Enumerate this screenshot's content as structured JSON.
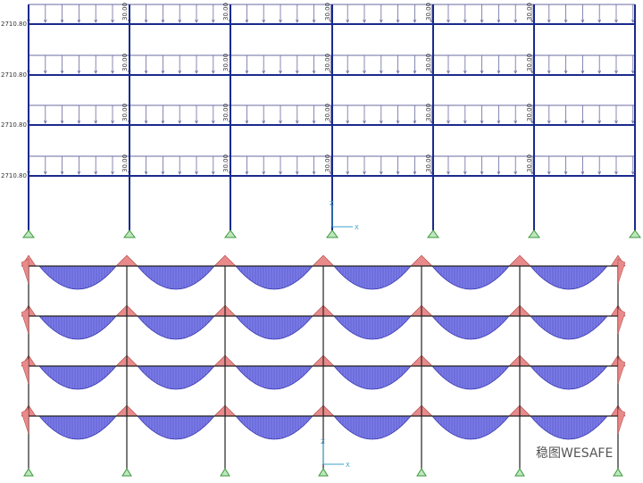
{
  "load_view": {
    "side_labels": [
      "2710.80",
      "2710.80",
      "2710.80",
      "2710.80"
    ],
    "load_labels": [
      [
        "30.00",
        "30.00",
        "30.00",
        "30.00",
        "30.00"
      ],
      [
        "30.00",
        "30.00",
        "30.00",
        "30.00",
        "30.00"
      ],
      [
        "30.00",
        "30.00",
        "30.00",
        "30.00",
        "30.00"
      ],
      [
        "30.00",
        "30.00",
        "30.00",
        "30.00",
        "30.00"
      ]
    ],
    "axis_x": "X",
    "axis_z": "Z"
  },
  "moment_view": {
    "axis_x": "X",
    "axis_z": "Z"
  },
  "watermark": "稳图WESAFE"
}
